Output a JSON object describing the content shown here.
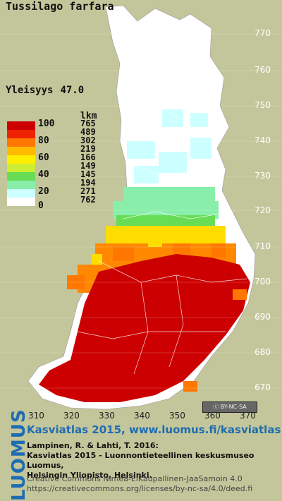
{
  "title": "Tussilago farfara",
  "prevalence": {
    "label": "Yleisyys",
    "value": "47.0"
  },
  "legend": {
    "count_header": "lkm",
    "rows": [
      {
        "label": "100",
        "count": "765",
        "color": "#cc0000"
      },
      {
        "label": "80",
        "count": "489",
        "color": "#ee2200"
      },
      {
        "label": "",
        "count": "302",
        "color": "#ff7700"
      },
      {
        "label": "60",
        "count": "219",
        "color": "#ffbb00"
      },
      {
        "label": "",
        "count": "166",
        "color": "#ffee00"
      },
      {
        "label": "40",
        "count": "149",
        "color": "#ccee33"
      },
      {
        "label": "",
        "count": "145",
        "color": "#66dd55"
      },
      {
        "label": "20",
        "count": "194",
        "color": "#88eeaa"
      },
      {
        "label": "",
        "count": "271",
        "color": "#ccffff"
      },
      {
        "label": "0",
        "count": "762",
        "color": "#ffffff"
      }
    ]
  },
  "y_ticks": [
    "770",
    "760",
    "750",
    "740",
    "730",
    "720",
    "710",
    "700",
    "690",
    "680",
    "670"
  ],
  "x_ticks": [
    "310",
    "320",
    "330",
    "340",
    "350",
    "360",
    "370"
  ],
  "license_badge": "BY-NC-SA",
  "footer": {
    "link": "Kasviatlas 2015, www.luomus.fi/kasviatlas",
    "citation_line1": "Lampinen, R. & Lahti, T. 2016:",
    "citation_line2": "Kasviatlas 2015 - Luonnontieteellinen keskusmuseo Luomus,",
    "citation_line3": "Helsingin Yliopisto, Helsinki.",
    "license_line1": "Creative Commons Nimeä-EiKaupallinen-JaaSamoin 4.0",
    "license_line2": "https://creativecommons.org/licenses/by-nc-sa/4.0/deed.fi",
    "logo": "LUOMUS"
  }
}
